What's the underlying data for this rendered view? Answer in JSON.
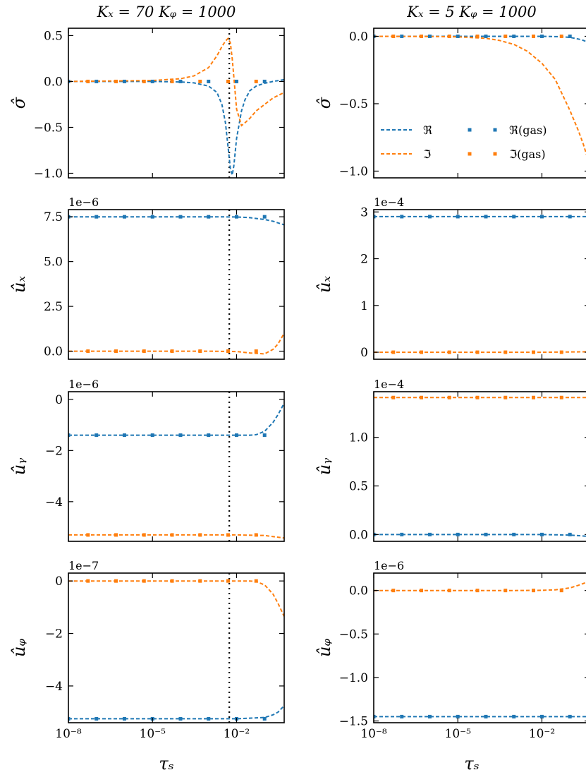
{
  "colors": {
    "real": "#1f77b4",
    "imag": "#ff7f0e",
    "vline": "#000000"
  },
  "columns": [
    {
      "title": "Kₓ = 70  Kᵩ = 1000",
      "vline_x": 0.0055
    },
    {
      "title": "Kₓ = 5  Kᵩ = 1000",
      "vline_x": null
    }
  ],
  "x_axis": {
    "label": "τₛ",
    "scale": "log",
    "xlim": [
      1e-08,
      0.5
    ],
    "ticks": [
      {
        "value": 1e-08,
        "label": "10⁻⁸"
      },
      {
        "value": 1e-05,
        "label": "10⁻⁵"
      },
      {
        "value": 0.01,
        "label": "10⁻²"
      }
    ]
  },
  "legend": {
    "position": "center-right of top-right panel",
    "entries": [
      {
        "label": "ℜ",
        "style": "dashed-line",
        "color": "real"
      },
      {
        "label": "ℜ(gas)",
        "style": "square-markers",
        "color": "real"
      },
      {
        "label": "ℑ",
        "style": "dashed-line",
        "color": "imag"
      },
      {
        "label": "ℑ(gas)",
        "style": "square-markers",
        "color": "imag"
      }
    ]
  },
  "chart_data": [
    {
      "type": "line",
      "row": 0,
      "col": 0,
      "ylabel": "σ̂",
      "offset": "",
      "ylim": [
        -1.05,
        0.58
      ],
      "yticks": [
        {
          "value": 0.5,
          "label": "0.5"
        },
        {
          "value": 0.0,
          "label": "0.0"
        },
        {
          "value": -0.5,
          "label": "−0.5"
        },
        {
          "value": -1.0,
          "label": "−1.0"
        }
      ],
      "series": [
        {
          "part": "real",
          "kind": "line",
          "x": [
            1e-08,
            1e-05,
            0.0001,
            0.0003,
            0.001,
            0.002,
            0.003,
            0.004,
            0.005,
            0.006,
            0.007,
            0.008,
            0.01,
            0.015,
            0.02,
            0.03,
            0.05,
            0.1,
            0.2,
            0.5
          ],
          "y": [
            0.0,
            0.0,
            -0.005,
            -0.015,
            -0.05,
            -0.12,
            -0.25,
            -0.45,
            -0.72,
            -0.95,
            -1.02,
            -0.92,
            -0.62,
            -0.32,
            -0.2,
            -0.1,
            -0.05,
            -0.02,
            0.0,
            0.02
          ]
        },
        {
          "part": "imag",
          "kind": "line",
          "x": [
            1e-08,
            1e-05,
            0.0001,
            0.0003,
            0.001,
            0.002,
            0.003,
            0.004,
            0.005,
            0.006,
            0.007,
            0.008,
            0.01,
            0.015,
            0.02,
            0.03,
            0.05,
            0.1,
            0.2,
            0.5
          ],
          "y": [
            0.0,
            0.01,
            0.03,
            0.06,
            0.15,
            0.28,
            0.38,
            0.44,
            0.47,
            0.42,
            0.25,
            0.05,
            -0.3,
            -0.48,
            -0.45,
            -0.4,
            -0.32,
            -0.25,
            -0.18,
            -0.12
          ]
        },
        {
          "part": "real",
          "kind": "markers",
          "x": [
            1e-08,
            1e-07,
            1e-06,
            1e-05,
            0.0001,
            0.001,
            0.01,
            0.1
          ],
          "y": [
            0.0,
            0.0,
            0.0,
            0.0,
            0.0,
            0.0,
            0.0,
            0.0
          ]
        },
        {
          "part": "imag",
          "kind": "markers",
          "x": [
            5e-08,
            5e-07,
            5e-06,
            5e-05,
            0.0005,
            0.005,
            0.05
          ],
          "y": [
            0.0,
            0.0,
            0.0,
            0.0,
            0.0,
            0.0,
            0.0
          ]
        }
      ]
    },
    {
      "type": "line",
      "row": 0,
      "col": 1,
      "ylabel": "σ̂",
      "offset": "",
      "ylim": [
        -1.05,
        0.06
      ],
      "yticks": [
        {
          "value": 0.0,
          "label": "0.0"
        },
        {
          "value": -0.5,
          "label": "−0.5"
        },
        {
          "value": -1.0,
          "label": "−1.0"
        }
      ],
      "series": [
        {
          "part": "real",
          "kind": "line",
          "x": [
            1e-08,
            0.0001,
            0.01,
            0.05,
            0.1,
            0.2,
            0.3,
            0.5
          ],
          "y": [
            0.0,
            0.0,
            0.0,
            -0.003,
            -0.008,
            -0.02,
            -0.03,
            -0.05
          ]
        },
        {
          "part": "imag",
          "kind": "line",
          "x": [
            1e-08,
            1e-06,
            1e-05,
            0.0001,
            0.0003,
            0.001,
            0.003,
            0.01,
            0.03,
            0.1,
            0.2,
            0.3,
            0.5
          ],
          "y": [
            0.0,
            -0.001,
            -0.004,
            -0.015,
            -0.03,
            -0.06,
            -0.11,
            -0.2,
            -0.32,
            -0.55,
            -0.7,
            -0.8,
            -0.95
          ]
        },
        {
          "part": "real",
          "kind": "markers",
          "x": [
            1e-08,
            1e-07,
            1e-06,
            1e-05,
            0.0001,
            0.001,
            0.01,
            0.1
          ],
          "y": [
            0.0,
            0.0,
            0.0,
            0.0,
            0.0,
            0.0,
            0.0,
            0.0
          ]
        },
        {
          "part": "imag",
          "kind": "markers",
          "x": [
            5e-08,
            5e-07,
            5e-06,
            5e-05,
            0.0005,
            0.005,
            0.05
          ],
          "y": [
            0.0,
            0.0,
            0.0,
            0.0,
            0.0,
            0.0,
            0.0
          ]
        }
      ]
    },
    {
      "type": "line",
      "row": 1,
      "col": 0,
      "ylabel": "ûₓ",
      "offset": "1e−6",
      "ylim": [
        -0.45,
        7.9
      ],
      "yticks": [
        {
          "value": 7.5,
          "label": "7.5"
        },
        {
          "value": 5.0,
          "label": "5.0"
        },
        {
          "value": 2.5,
          "label": "2.5"
        },
        {
          "value": 0.0,
          "label": "0.0"
        }
      ],
      "series": [
        {
          "part": "real",
          "kind": "line",
          "x": [
            1e-08,
            0.001,
            0.01,
            0.03,
            0.1,
            0.2,
            0.5
          ],
          "y": [
            7.5,
            7.5,
            7.49,
            7.45,
            7.35,
            7.25,
            7.05
          ]
        },
        {
          "part": "imag",
          "kind": "line",
          "x": [
            1e-08,
            0.001,
            0.01,
            0.03,
            0.1,
            0.2,
            0.3,
            0.5
          ],
          "y": [
            0.0,
            0.0,
            -0.02,
            -0.1,
            -0.15,
            0.1,
            0.4,
            1.0
          ]
        },
        {
          "part": "real",
          "kind": "markers",
          "x": [
            1e-08,
            1e-07,
            1e-06,
            1e-05,
            0.0001,
            0.001,
            0.01,
            0.1
          ],
          "y": [
            7.5,
            7.5,
            7.5,
            7.5,
            7.5,
            7.5,
            7.5,
            7.5
          ]
        },
        {
          "part": "imag",
          "kind": "markers",
          "x": [
            5e-08,
            5e-07,
            5e-06,
            5e-05,
            0.0005,
            0.005,
            0.05
          ],
          "y": [
            0.0,
            0.0,
            0.0,
            0.0,
            0.0,
            0.0,
            0.0
          ]
        }
      ]
    },
    {
      "type": "line",
      "row": 1,
      "col": 1,
      "ylabel": "ûₓ",
      "offset": "1e−4",
      "ylim": [
        -0.15,
        3.05
      ],
      "yticks": [
        {
          "value": 3,
          "label": "3"
        },
        {
          "value": 2,
          "label": "2"
        },
        {
          "value": 1,
          "label": "1"
        },
        {
          "value": 0,
          "label": "0"
        }
      ],
      "series": [
        {
          "part": "real",
          "kind": "line",
          "x": [
            1e-08,
            0.01,
            0.5
          ],
          "y": [
            2.9,
            2.9,
            2.9
          ]
        },
        {
          "part": "imag",
          "kind": "line",
          "x": [
            1e-08,
            0.01,
            0.5
          ],
          "y": [
            0.0,
            0.0,
            0.01
          ]
        },
        {
          "part": "real",
          "kind": "markers",
          "x": [
            1e-08,
            1e-07,
            1e-06,
            1e-05,
            0.0001,
            0.001,
            0.01,
            0.1
          ],
          "y": [
            2.9,
            2.9,
            2.9,
            2.9,
            2.9,
            2.9,
            2.9,
            2.9
          ]
        },
        {
          "part": "imag",
          "kind": "markers",
          "x": [
            5e-08,
            5e-07,
            5e-06,
            5e-05,
            0.0005,
            0.005,
            0.05
          ],
          "y": [
            0.0,
            0.0,
            0.0,
            0.0,
            0.0,
            0.0,
            0.0
          ]
        }
      ]
    },
    {
      "type": "line",
      "row": 2,
      "col": 0,
      "ylabel": "ûᵧ",
      "offset": "1e−6",
      "ylim": [
        -5.55,
        0.3
      ],
      "yticks": [
        {
          "value": 0,
          "label": "0"
        },
        {
          "value": -2,
          "label": "−2"
        },
        {
          "value": -4,
          "label": "−4"
        }
      ],
      "series": [
        {
          "part": "real",
          "kind": "line",
          "x": [
            1e-08,
            0.01,
            0.03,
            0.05,
            0.1,
            0.2,
            0.3,
            0.5
          ],
          "y": [
            -1.4,
            -1.4,
            -1.4,
            -1.38,
            -1.25,
            -0.9,
            -0.6,
            -0.15
          ]
        },
        {
          "part": "imag",
          "kind": "line",
          "x": [
            1e-08,
            0.01,
            0.1,
            0.5
          ],
          "y": [
            -5.3,
            -5.3,
            -5.32,
            -5.42
          ]
        },
        {
          "part": "real",
          "kind": "markers",
          "x": [
            1e-08,
            1e-07,
            1e-06,
            1e-05,
            0.0001,
            0.001,
            0.01,
            0.1
          ],
          "y": [
            -1.4,
            -1.4,
            -1.4,
            -1.4,
            -1.4,
            -1.4,
            -1.4,
            -1.4
          ]
        },
        {
          "part": "imag",
          "kind": "markers",
          "x": [
            5e-08,
            5e-07,
            5e-06,
            5e-05,
            0.0005,
            0.005,
            0.05
          ],
          "y": [
            -5.3,
            -5.3,
            -5.3,
            -5.3,
            -5.3,
            -5.3,
            -5.3
          ]
        }
      ]
    },
    {
      "type": "line",
      "row": 2,
      "col": 1,
      "ylabel": "ûᵧ",
      "offset": "1e−4",
      "ylim": [
        -0.07,
        1.47
      ],
      "yticks": [
        {
          "value": 1.0,
          "label": "1.0"
        },
        {
          "value": 0.5,
          "label": "0.5"
        },
        {
          "value": 0.0,
          "label": "0.0"
        }
      ],
      "series": [
        {
          "part": "real",
          "kind": "line",
          "x": [
            1e-08,
            0.01,
            0.1,
            0.5
          ],
          "y": [
            0.0,
            0.0,
            -0.005,
            -0.02
          ]
        },
        {
          "part": "imag",
          "kind": "line",
          "x": [
            1e-08,
            0.01,
            0.5
          ],
          "y": [
            1.41,
            1.41,
            1.41
          ]
        },
        {
          "part": "real",
          "kind": "markers",
          "x": [
            1e-08,
            1e-07,
            1e-06,
            1e-05,
            0.0001,
            0.001,
            0.01,
            0.1
          ],
          "y": [
            0.0,
            0.0,
            0.0,
            0.0,
            0.0,
            0.0,
            0.0,
            0.0
          ]
        },
        {
          "part": "imag",
          "kind": "markers",
          "x": [
            5e-08,
            5e-07,
            5e-06,
            5e-05,
            0.0005,
            0.005,
            0.05
          ],
          "y": [
            1.41,
            1.41,
            1.41,
            1.41,
            1.41,
            1.41,
            1.41
          ]
        }
      ]
    },
    {
      "type": "line",
      "row": 3,
      "col": 0,
      "ylabel": "ûᵩ",
      "offset": "1e−7",
      "ylim": [
        -5.4,
        0.3
      ],
      "yticks": [
        {
          "value": 0,
          "label": "0"
        },
        {
          "value": -2,
          "label": "−2"
        },
        {
          "value": -4,
          "label": "−4"
        }
      ],
      "series": [
        {
          "part": "real",
          "kind": "line",
          "x": [
            1e-08,
            0.01,
            0.1,
            0.2,
            0.3,
            0.5
          ],
          "y": [
            -5.25,
            -5.25,
            -5.2,
            -5.1,
            -5.0,
            -4.75
          ]
        },
        {
          "part": "imag",
          "kind": "line",
          "x": [
            1e-08,
            0.01,
            0.03,
            0.05,
            0.1,
            0.2,
            0.3,
            0.5
          ],
          "y": [
            0.0,
            0.0,
            0.0,
            -0.02,
            -0.15,
            -0.5,
            -0.85,
            -1.35
          ]
        },
        {
          "part": "real",
          "kind": "markers",
          "x": [
            1e-08,
            1e-07,
            1e-06,
            1e-05,
            0.0001,
            0.001,
            0.01,
            0.1
          ],
          "y": [
            -5.25,
            -5.25,
            -5.25,
            -5.25,
            -5.25,
            -5.25,
            -5.25,
            -5.25
          ]
        },
        {
          "part": "imag",
          "kind": "markers",
          "x": [
            5e-08,
            5e-07,
            5e-06,
            5e-05,
            0.0005,
            0.005,
            0.05
          ],
          "y": [
            0.0,
            0.0,
            0.0,
            0.0,
            0.0,
            0.0,
            0.0
          ]
        }
      ]
    },
    {
      "type": "line",
      "row": 3,
      "col": 1,
      "ylabel": "ûᵩ",
      "offset": "1e−6",
      "ylim": [
        -1.52,
        0.2
      ],
      "yticks": [
        {
          "value": 0.0,
          "label": "0.0"
        },
        {
          "value": -0.5,
          "label": "−0.5"
        },
        {
          "value": -1.0,
          "label": "−1.0"
        },
        {
          "value": -1.5,
          "label": "−1.5"
        }
      ],
      "series": [
        {
          "part": "real",
          "kind": "line",
          "x": [
            1e-08,
            0.01,
            0.5
          ],
          "y": [
            -1.45,
            -1.45,
            -1.45
          ]
        },
        {
          "part": "imag",
          "kind": "line",
          "x": [
            1e-08,
            0.001,
            0.01,
            0.03,
            0.1,
            0.2,
            0.3,
            0.5
          ],
          "y": [
            0.0,
            0.0,
            0.002,
            0.008,
            0.03,
            0.06,
            0.08,
            0.11
          ]
        },
        {
          "part": "real",
          "kind": "markers",
          "x": [
            1e-08,
            1e-07,
            1e-06,
            1e-05,
            0.0001,
            0.001,
            0.01,
            0.1
          ],
          "y": [
            -1.45,
            -1.45,
            -1.45,
            -1.45,
            -1.45,
            -1.45,
            -1.45,
            -1.45
          ]
        },
        {
          "part": "imag",
          "kind": "markers",
          "x": [
            5e-08,
            5e-07,
            5e-06,
            5e-05,
            0.0005,
            0.005,
            0.05
          ],
          "y": [
            0.0,
            0.0,
            0.0,
            0.0,
            0.0,
            0.0,
            0.0
          ]
        }
      ]
    }
  ]
}
